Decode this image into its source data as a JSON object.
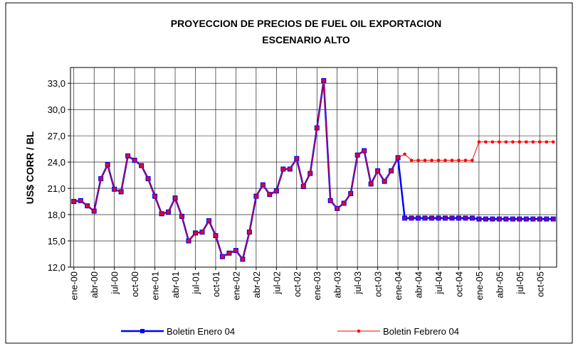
{
  "chart_data": {
    "type": "line",
    "title": "PROYECCION DE PRECIOS DE FUEL OIL EXPORTACION",
    "subtitle": "ESCENARIO ALTO",
    "y_label": "US$ CORR / BL",
    "categories": [
      "ene-00",
      null,
      null,
      "abr-00",
      null,
      null,
      "jul-00",
      null,
      null,
      "oct-00",
      null,
      null,
      "ene-01",
      null,
      null,
      "abr-01",
      null,
      null,
      "jul-01",
      null,
      null,
      "oct-01",
      null,
      null,
      "ene-02",
      null,
      null,
      "abr-02",
      null,
      null,
      "jul-02",
      null,
      null,
      "oct-02",
      null,
      null,
      "ene-03",
      null,
      null,
      "abr-03",
      null,
      null,
      "jul-03",
      null,
      null,
      "oct-03",
      null,
      null,
      "ene-04",
      null,
      null,
      "abr-04",
      null,
      null,
      "jul-04",
      null,
      null,
      "oct-04",
      null,
      null,
      "ene-05",
      null,
      null,
      "abr-05",
      null,
      null,
      "jul-05",
      null,
      null,
      "oct-05",
      null,
      null
    ],
    "series": [
      {
        "name": "Boletin Enero 04",
        "color": "#0000ff",
        "marker": "square",
        "values": [
          19.5,
          19.6,
          19.0,
          18.4,
          22.1,
          23.7,
          20.9,
          20.6,
          24.7,
          24.2,
          23.6,
          22.1,
          20.1,
          18.1,
          18.3,
          19.9,
          17.8,
          15.0,
          15.9,
          16.0,
          17.3,
          15.6,
          13.2,
          13.6,
          13.9,
          12.9,
          16.0,
          20.1,
          21.4,
          20.3,
          20.7,
          23.2,
          23.2,
          24.4,
          21.2,
          22.7,
          27.9,
          33.3,
          19.6,
          18.7,
          19.3,
          20.4,
          24.8,
          25.3,
          21.5,
          23.0,
          21.8,
          23.0,
          24.5,
          17.6,
          17.6,
          17.6,
          17.6,
          17.6,
          17.6,
          17.6,
          17.6,
          17.6,
          17.6,
          17.6,
          17.5,
          17.5,
          17.5,
          17.5,
          17.5,
          17.5,
          17.5,
          17.5,
          17.5,
          17.5,
          17.5,
          17.5
        ]
      },
      {
        "name": "Boletin Febrero 04",
        "color": "#ff0000",
        "marker": "circle",
        "values": [
          19.5,
          19.6,
          19.0,
          18.4,
          22.1,
          23.7,
          20.9,
          20.6,
          24.7,
          24.2,
          23.6,
          22.1,
          20.1,
          18.1,
          18.3,
          19.9,
          17.8,
          15.0,
          15.9,
          16.0,
          17.3,
          15.6,
          13.2,
          13.6,
          13.9,
          12.9,
          16.0,
          20.1,
          21.4,
          20.3,
          20.7,
          23.2,
          23.2,
          24.4,
          21.2,
          22.7,
          27.9,
          33.3,
          19.6,
          18.7,
          19.3,
          20.4,
          24.8,
          25.3,
          21.5,
          23.0,
          21.8,
          23.0,
          24.5,
          24.9,
          24.2,
          24.2,
          24.2,
          24.2,
          24.2,
          24.2,
          24.2,
          24.2,
          24.2,
          24.2,
          26.3,
          26.3,
          26.3,
          26.3,
          26.3,
          26.3,
          26.3,
          26.3,
          26.3,
          26.3,
          26.3,
          26.3
        ]
      }
    ],
    "ylim": [
      12,
      34.8
    ],
    "yticks": [
      {
        "value": 12,
        "label": "12,0"
      },
      {
        "value": 15,
        "label": "15,0"
      },
      {
        "value": 18,
        "label": "18,0"
      },
      {
        "value": 21,
        "label": "21,0"
      },
      {
        "value": 24,
        "label": "24,0"
      },
      {
        "value": 27,
        "label": "27,0"
      },
      {
        "value": 30,
        "label": "30,0"
      },
      {
        "value": 33,
        "label": "33,0"
      }
    ],
    "grid": true
  }
}
